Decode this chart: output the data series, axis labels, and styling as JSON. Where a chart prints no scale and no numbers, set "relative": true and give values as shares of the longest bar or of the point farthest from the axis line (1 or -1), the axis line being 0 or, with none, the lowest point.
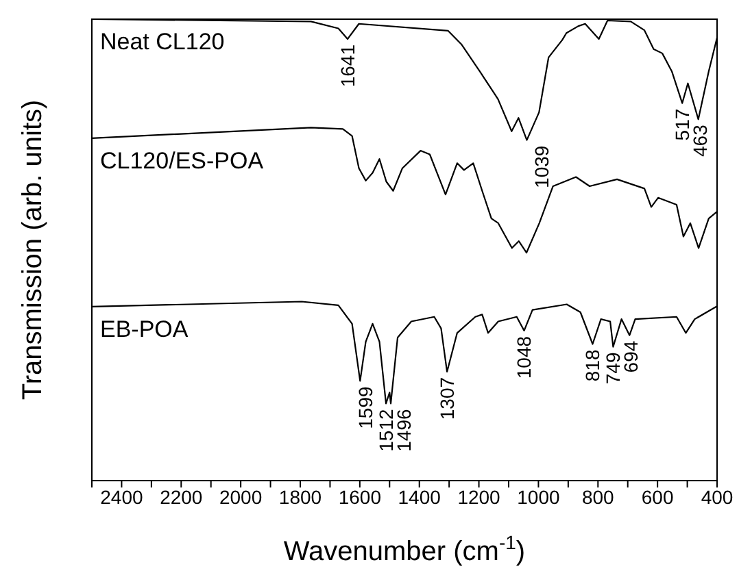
{
  "chart_data": {
    "type": "line",
    "xlabel": "Wavenumber (cm$^{-1}$)",
    "ylabel": "Transmission (arb. units)",
    "relative": true,
    "xlim": [
      2500,
      400
    ],
    "xticks": [
      {
        "value": 2500,
        "label": null
      },
      2400,
      {
        "value": 2300,
        "label": null
      },
      2200,
      {
        "value": 2100,
        "label": null
      },
      2000,
      {
        "value": 1900,
        "label": null
      },
      1800,
      {
        "value": 1700,
        "label": null
      },
      1600,
      {
        "value": 1500,
        "label": null
      },
      1400,
      {
        "value": 1300,
        "label": null
      },
      1200,
      {
        "value": 1100,
        "label": null
      },
      1000,
      {
        "value": 900,
        "label": null
      },
      800,
      {
        "value": 700,
        "label": null
      },
      600,
      {
        "value": 500,
        "label": null
      },
      400
    ],
    "marker": "none",
    "line_style": "solid",
    "series": [
      {
        "name": "Neat CL120",
        "color": "#000000",
        "x": [
          2500,
          1764,
          1672,
          1641,
          1603,
          1304,
          1258,
          1196,
          1136,
          1090,
          1067,
          1039,
          998,
          966,
          920,
          906,
          866,
          843,
          797,
          768,
          690,
          644,
          613,
          584,
          552,
          517,
          498,
          463,
          428,
          400
        ],
        "values": [
          1.0,
          0.995,
          0.98,
          0.957,
          0.99,
          0.975,
          0.945,
          0.886,
          0.827,
          0.757,
          0.786,
          0.738,
          0.798,
          0.917,
          0.955,
          0.97,
          0.985,
          0.99,
          0.957,
          0.997,
          0.995,
          0.976,
          0.935,
          0.926,
          0.887,
          0.818,
          0.861,
          0.783,
          0.887,
          0.96
        ]
      },
      {
        "name": "CL120/ES-POA",
        "color": "#000000",
        "x": [
          2500,
          1764,
          1657,
          1626,
          1603,
          1580,
          1557,
          1534,
          1511,
          1488,
          1457,
          1396,
          1365,
          1312,
          1273,
          1250,
          1219,
          1189,
          1158,
          1135,
          1089,
          1066,
          1040,
          997,
          951,
          874,
          828,
          736,
          644,
          621,
          598,
          536,
          513,
          490,
          462,
          428,
          400
        ],
        "values": [
          0.742,
          0.765,
          0.762,
          0.747,
          0.677,
          0.65,
          0.667,
          0.697,
          0.648,
          0.628,
          0.677,
          0.715,
          0.707,
          0.62,
          0.688,
          0.673,
          0.688,
          0.628,
          0.568,
          0.558,
          0.504,
          0.519,
          0.494,
          0.558,
          0.638,
          0.658,
          0.638,
          0.653,
          0.633,
          0.593,
          0.613,
          0.598,
          0.529,
          0.558,
          0.504,
          0.568,
          0.583
        ]
      },
      {
        "name": "EB-POA",
        "color": "#000000",
        "x": [
          2500,
          1795,
          1672,
          1626,
          1599,
          1580,
          1557,
          1534,
          1512,
          1500,
          1496,
          1473,
          1427,
          1350,
          1327,
          1307,
          1273,
          1212,
          1189,
          1169,
          1135,
          1073,
          1048,
          1020,
          905,
          859,
          818,
          790,
          759,
          749,
          721,
          694,
          675,
          536,
          505,
          475,
          400
        ],
        "values": [
          0.377,
          0.388,
          0.38,
          0.34,
          0.216,
          0.301,
          0.34,
          0.301,
          0.167,
          0.191,
          0.167,
          0.31,
          0.345,
          0.355,
          0.33,
          0.236,
          0.32,
          0.355,
          0.36,
          0.32,
          0.345,
          0.355,
          0.325,
          0.37,
          0.382,
          0.365,
          0.296,
          0.35,
          0.345,
          0.29,
          0.35,
          0.315,
          0.35,
          0.355,
          0.32,
          0.35,
          0.378
        ]
      }
    ],
    "annotations": [
      {
        "text": "1641",
        "x": 1641,
        "y": 0.957
      },
      {
        "text": "1039",
        "x": 1039,
        "y": 0.738
      },
      {
        "text": "517",
        "x": 517,
        "y": 0.818
      },
      {
        "text": "463",
        "x": 463,
        "y": 0.783
      },
      {
        "text": "1599",
        "x": 1599,
        "y": 0.216
      },
      {
        "text": "1512",
        "x": 1512,
        "y": 0.167
      },
      {
        "text": "1496",
        "x": 1496,
        "y": 0.167
      },
      {
        "text": "1307",
        "x": 1307,
        "y": 0.236
      },
      {
        "text": "1048",
        "x": 1048,
        "y": 0.325
      },
      {
        "text": "818",
        "x": 818,
        "y": 0.296
      },
      {
        "text": "749",
        "x": 749,
        "y": 0.29
      },
      {
        "text": "694",
        "x": 694,
        "y": 0.315
      }
    ]
  }
}
